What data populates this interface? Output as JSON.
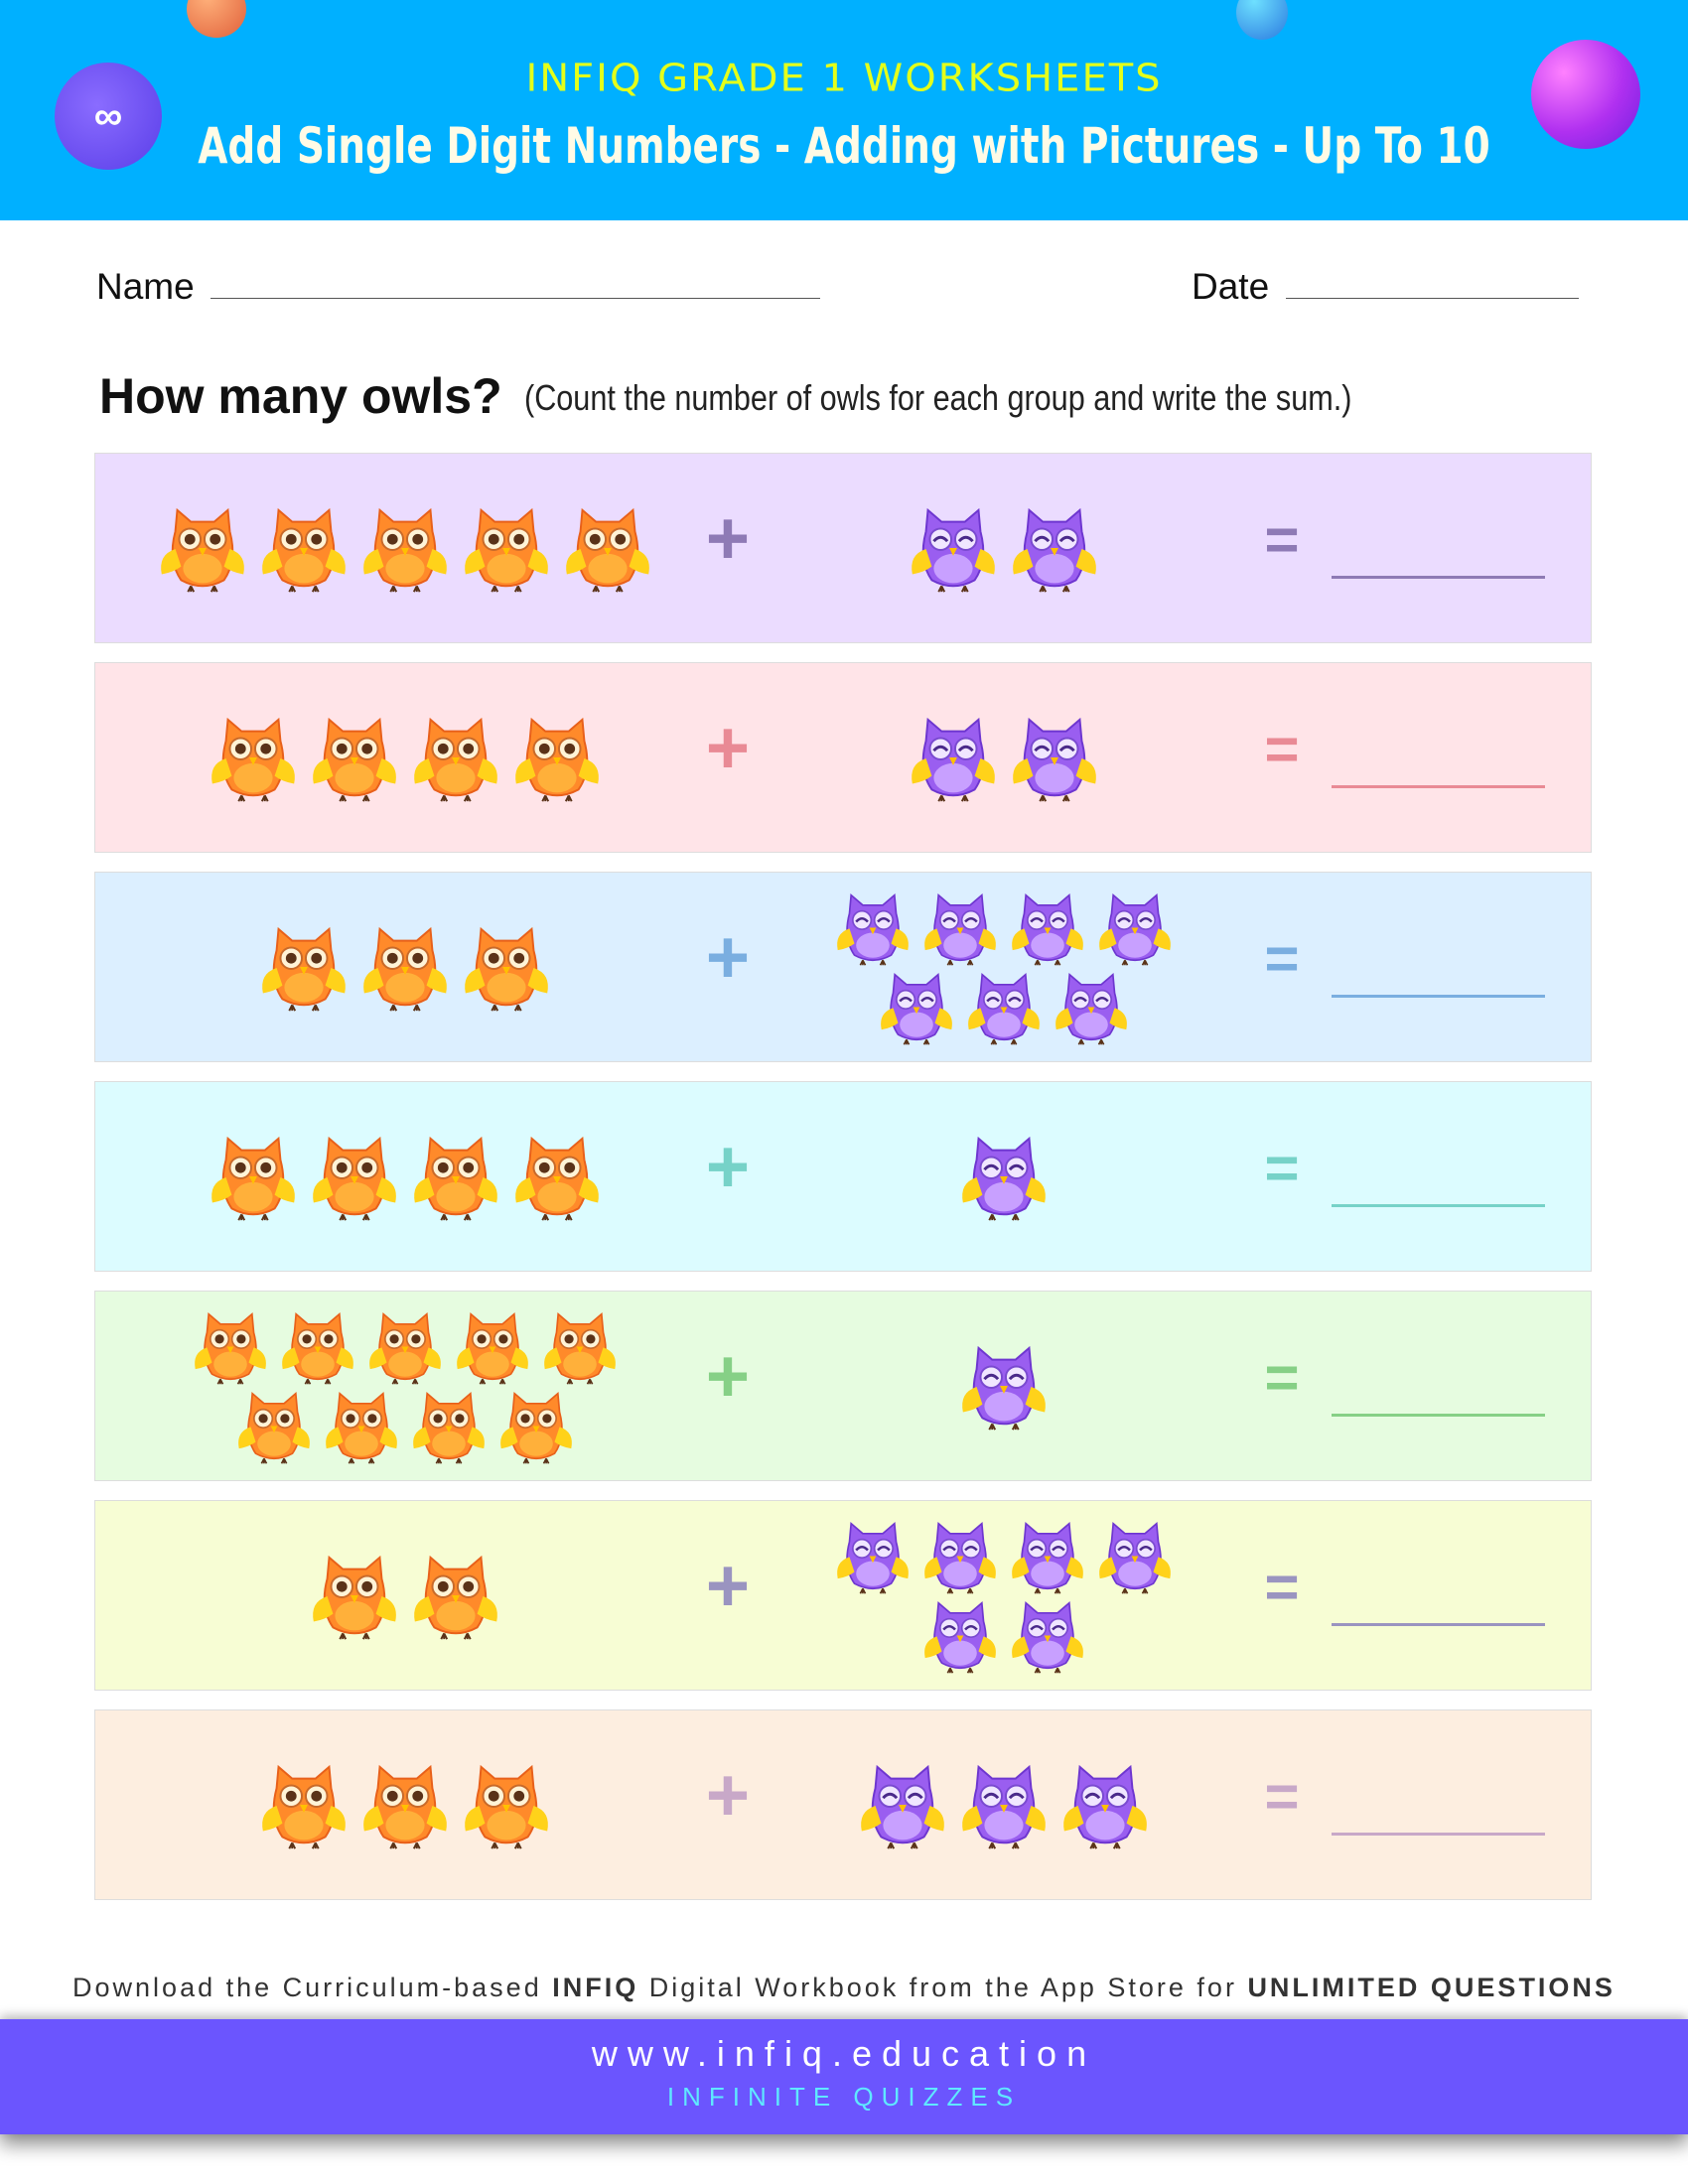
{
  "header": {
    "brand": "INFIQ GRADE 1 WORKSHEETS",
    "title": "Add Single Digit Numbers - Adding with Pictures - Up To 10",
    "logo_icon": "infiq-logo",
    "background": "#00b0ff"
  },
  "form": {
    "name_label": "Name",
    "date_label": "Date"
  },
  "question": {
    "heading": "How many owls?",
    "instruction": "(Count the number of owls for each group and write the sum.)"
  },
  "owl_colors": {
    "orange": "#ff7a1f",
    "purple": "#8a4ee8"
  },
  "problems": [
    {
      "orange": 5,
      "purple": 2,
      "plus": "+",
      "equals": "=",
      "bg": "#ebdcff",
      "sign_color": "#8e7ab5"
    },
    {
      "orange": 4,
      "purple": 2,
      "plus": "+",
      "equals": "=",
      "bg": "#ffe4e8",
      "sign_color": "#e98a95"
    },
    {
      "orange": 3,
      "purple": 7,
      "plus": "+",
      "equals": "=",
      "bg": "#dcefff",
      "sign_color": "#7aaee0"
    },
    {
      "orange": 4,
      "purple": 1,
      "plus": "+",
      "equals": "=",
      "bg": "#dcfcff",
      "sign_color": "#76d2c8"
    },
    {
      "orange": 9,
      "purple": 1,
      "plus": "+",
      "equals": "=",
      "bg": "#e6fce0",
      "sign_color": "#86d086"
    },
    {
      "orange": 2,
      "purple": 6,
      "plus": "+",
      "equals": "=",
      "bg": "#f7fdd4",
      "sign_color": "#9a94c0"
    },
    {
      "orange": 3,
      "purple": 3,
      "plus": "+",
      "equals": "=",
      "bg": "#fdeee0",
      "sign_color": "#c8a8c8"
    }
  ],
  "footer": {
    "promo_pre": "Download the Curriculum-based ",
    "promo_brand": "INFIQ",
    "promo_mid": " Digital Workbook from the App Store for ",
    "promo_bold": "UNLIMITED QUESTIONS",
    "url": "www.infiq.education",
    "tagline": "INFINITE QUIZZES",
    "band_color": "#6b55fe"
  }
}
